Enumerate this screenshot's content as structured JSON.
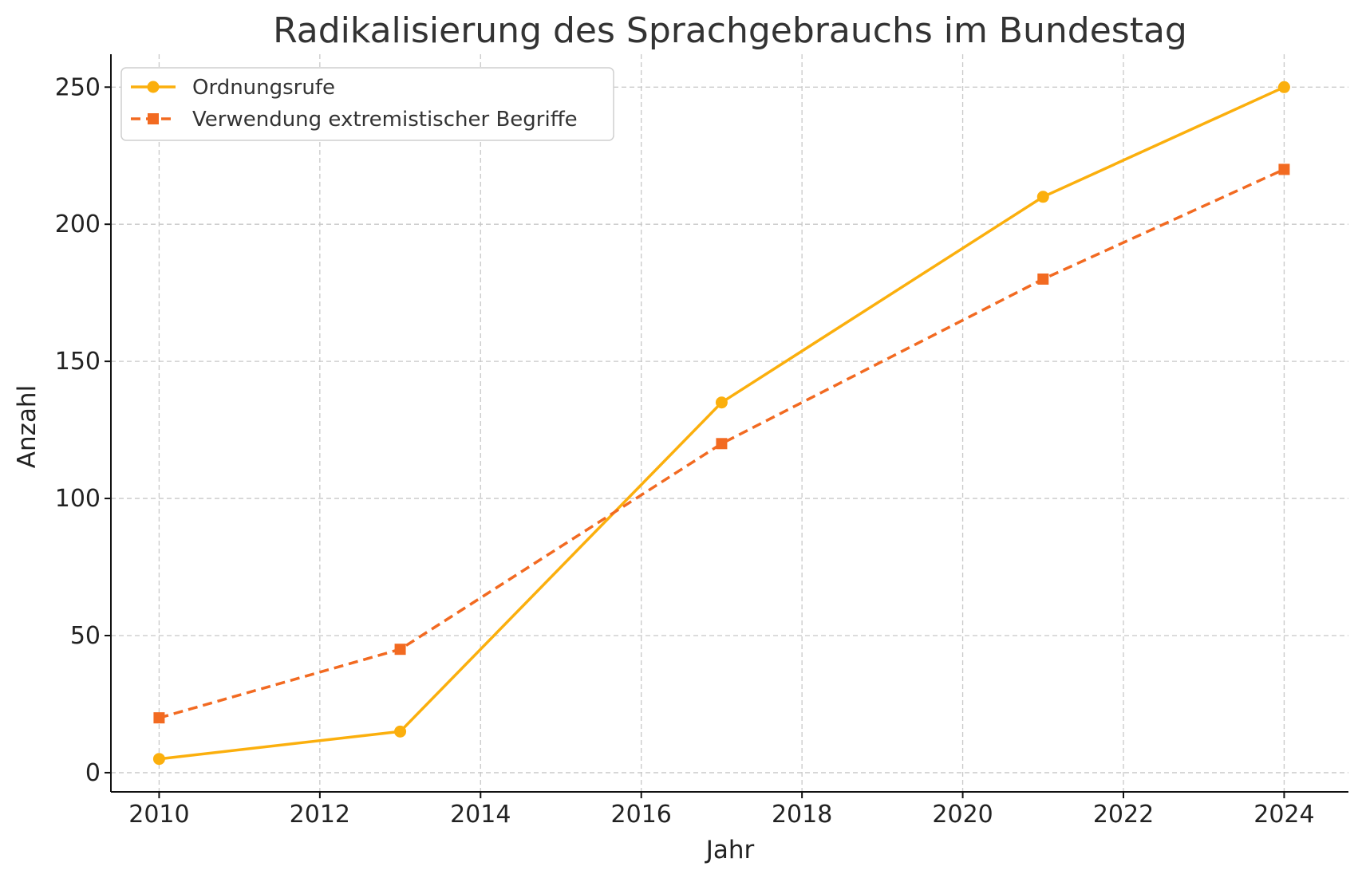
{
  "chart_data": {
    "type": "line",
    "title": "Radikalisierung des Sprachgebrauchs im Bundestag",
    "xlabel": "Jahr",
    "ylabel": "Anzahl",
    "x": [
      2010,
      2013,
      2017,
      2021,
      2024
    ],
    "xlim": [
      2009.4,
      2024.8
    ],
    "ylim": [
      -7,
      262
    ],
    "xticks": [
      2010,
      2012,
      2014,
      2016,
      2018,
      2020,
      2022,
      2024
    ],
    "yticks": [
      0,
      50,
      100,
      150,
      200,
      250
    ],
    "grid": true,
    "legend_position": "top-left",
    "series": [
      {
        "name": "Ordnungsrufe",
        "values": [
          5,
          15,
          135,
          210,
          250
        ],
        "color": "#FBAF0D",
        "line_style": "solid",
        "marker": "circle"
      },
      {
        "name": "Verwendung extremistischer Begriffe",
        "values": [
          20,
          45,
          120,
          180,
          220
        ],
        "color": "#F26A21",
        "line_style": "dashed",
        "marker": "square"
      }
    ]
  }
}
